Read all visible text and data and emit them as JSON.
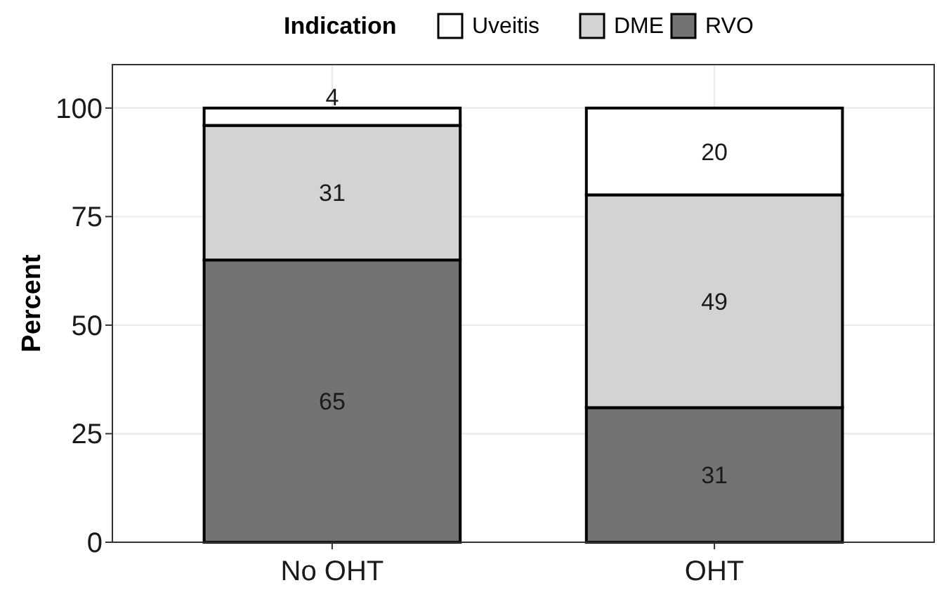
{
  "chart_data": {
    "type": "bar",
    "stacked": true,
    "ylabel": "Percent",
    "legend_title": "Indication",
    "legend": "top",
    "categories": [
      "No OHT",
      "OHT"
    ],
    "series": [
      {
        "name": "RVO",
        "color": "#737373",
        "values": [
          65,
          31
        ]
      },
      {
        "name": "DME",
        "color": "#d3d3d3",
        "values": [
          31,
          49
        ]
      },
      {
        "name": "Uveitis",
        "color": "#ffffff",
        "values": [
          4,
          20
        ]
      }
    ],
    "ylim": [
      0,
      110
    ],
    "yticks": [
      0,
      25,
      50,
      75,
      100
    ],
    "grid": true,
    "data_labels": true
  }
}
